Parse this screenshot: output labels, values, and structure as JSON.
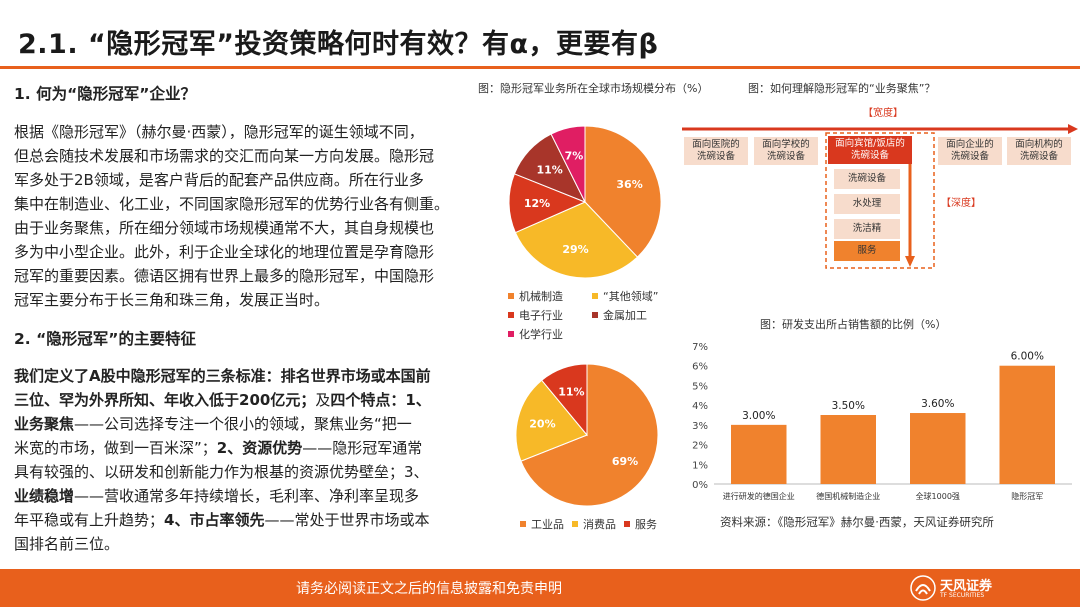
{
  "title": "2.1. “隐形冠军”投资策略何时有效？有α，更要有β",
  "left": {
    "heading1": "1. 何为“隐形冠军”企业？",
    "para1": [
      "根据《隐形冠军》（赫尔曼·西蒙），隐形冠军的诞生领域不同，",
      "但总会随技术发展和市场需求的交汇而向某一方向发展。隐形冠",
      "军多处于2B领域，是客户背后的配套产品供应商。所在行业多",
      "集中在制造业、化工业，不同国家隐形冠军的优势行业各有侧重。",
      "由于业务聚焦，所在细分领域市场规模通常不大，其自身规模也",
      "多为中小型企业。此外，利于企业全球化的地理位置是孕育隐形",
      "冠军的重要因素。德语区拥有世界上最多的隐形冠军，中国隐形",
      "冠军主要分布于长三角和珠三角，发展正当时。"
    ],
    "heading2": "2. “隐形冠军”的主要特征",
    "para2": {
      "l1": "我们定义了A股中隐形冠军的三条标准：排名世界市场或本国前",
      "l2a": "三位、罕为外界所知、年收入低于200亿元；",
      "l2b": "及",
      "l2c": "四个特点：1、",
      "l3a": "业务聚焦",
      "l3b": "——公司选择专注一个很小的领域，聚焦业务“把一",
      "l4": "米宽的市场，做到一百米深”；",
      "l4b": "2、资源优势",
      "l4c": "——隐形冠军通常",
      "l5": "具有较强的、以研发和创新能力作为根基的资源优势壁垒；3、",
      "l6a": "业绩稳增",
      "l6b": "——营收通常多年持续增长，毛利率、净利率呈现多",
      "l7": "年平稳或有上升趋势；",
      "l7b": "4、市占率领先",
      "l7c": "——常处于世界市场或本",
      "l8": "国排名前三位。"
    }
  },
  "fig1": {
    "caption": "图：隐形冠军业务所在全球市场规模分布（%）"
  },
  "fig2": {
    "caption": "图：如何理解隐形冠军的“业务聚焦”？",
    "width_label": "【宽度】",
    "depth_label": "【深度】",
    "top_boxes": [
      "面向医院的\n洗碗设备",
      "面向学校的\n洗碗设备",
      "面向宾馆/饭店的\n洗碗设备",
      "面向企业的\n洗碗设备",
      "面向机构的\n洗碗设备"
    ],
    "sub_boxes": [
      "洗碗设备",
      "水处理",
      "洗洁精",
      "服务"
    ]
  },
  "fig3": {
    "caption": "图：研发支出所占销售额的比例（%）"
  },
  "source": "资料来源：《隐形冠军》赫尔曼·西蒙，天风证券研究所",
  "footer": {
    "disclaimer": "请务必阅读正文之后的信息披露和免责申明",
    "logo_cn": "天风证券",
    "logo_en": "TF SECURITIES"
  },
  "colors": {
    "accent": "#e8601c",
    "orange": "#f0822d",
    "yellow": "#f7b928",
    "red": "#d9381e",
    "brown": "#a8352a",
    "pink": "#e01e63"
  },
  "chart_data": [
    {
      "type": "pie",
      "title": "图：隐形冠军业务所在全球市场规模分布（%）",
      "labels": [
        "机械制造",
        "“其他领域”",
        "电子行业",
        "金属加工",
        "化学行业"
      ],
      "values": [
        36,
        29,
        12,
        11,
        7
      ],
      "colors": [
        "#f0822d",
        "#f7b928",
        "#d9381e",
        "#a8352a",
        "#e01e63"
      ],
      "legend": "bottom"
    },
    {
      "type": "pie",
      "title": "",
      "labels": [
        "工业品",
        "消费品",
        "服务"
      ],
      "values": [
        69,
        20,
        11
      ],
      "colors": [
        "#f0822d",
        "#f7b928",
        "#d9381e"
      ],
      "legend": "bottom"
    },
    {
      "type": "bar",
      "title": "图：研发支出所占销售额的比例（%）",
      "categories": [
        "进行研发的德国企业",
        "德国机械制造企业",
        "全球1000强",
        "隐形冠军"
      ],
      "values": [
        3.0,
        3.5,
        3.6,
        6.0
      ],
      "value_labels": [
        "3.00%",
        "3.50%",
        "3.60%",
        "6.00%"
      ],
      "yticks": [
        "0%",
        "1%",
        "2%",
        "3%",
        "4%",
        "5%",
        "6%",
        "7%"
      ],
      "ylim": [
        0,
        7
      ],
      "grid": false,
      "color": "#f0822d"
    }
  ]
}
